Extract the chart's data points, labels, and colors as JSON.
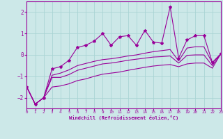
{
  "xlabel": "Windchill (Refroidissement éolien,°C)",
  "xlim": [
    0,
    23
  ],
  "ylim": [
    -2.5,
    2.5
  ],
  "yticks": [
    -2,
    -1,
    0,
    1,
    2
  ],
  "xticks": [
    0,
    1,
    2,
    3,
    4,
    5,
    6,
    7,
    8,
    9,
    10,
    11,
    12,
    13,
    14,
    15,
    16,
    17,
    18,
    19,
    20,
    21,
    22,
    23
  ],
  "bg_color": "#cce8e8",
  "grid_color": "#aad4d4",
  "line_color": "#990099",
  "line1_x": [
    0,
    1,
    2,
    3,
    4,
    5,
    6,
    7,
    8,
    9,
    10,
    11,
    12,
    13,
    14,
    15,
    16,
    17,
    18,
    19,
    20,
    21,
    22,
    23
  ],
  "line1_y": [
    -1.5,
    -2.3,
    -2.0,
    -0.65,
    -0.55,
    -0.25,
    0.35,
    0.45,
    0.65,
    1.0,
    0.45,
    0.85,
    0.9,
    0.45,
    1.15,
    0.6,
    0.55,
    2.25,
    -0.15,
    0.7,
    0.9,
    0.9,
    -0.35,
    0.05
  ],
  "line2_x": [
    0,
    1,
    2,
    3,
    4,
    5,
    6,
    7,
    8,
    9,
    10,
    11,
    12,
    13,
    14,
    15,
    16,
    17,
    18,
    19,
    20,
    21,
    22,
    23
  ],
  "line2_y": [
    -1.5,
    -2.3,
    -2.0,
    -0.95,
    -0.85,
    -0.7,
    -0.5,
    -0.4,
    -0.3,
    -0.22,
    -0.18,
    -0.12,
    -0.05,
    0.0,
    0.08,
    0.15,
    0.2,
    0.25,
    -0.28,
    0.32,
    0.38,
    0.38,
    -0.38,
    0.05
  ],
  "line3_x": [
    0,
    1,
    2,
    3,
    4,
    5,
    6,
    7,
    8,
    9,
    10,
    11,
    12,
    13,
    14,
    15,
    16,
    17,
    18,
    19,
    20,
    21,
    22,
    23
  ],
  "line3_y": [
    -1.5,
    -2.3,
    -2.0,
    -1.05,
    -1.05,
    -0.92,
    -0.72,
    -0.62,
    -0.52,
    -0.42,
    -0.38,
    -0.32,
    -0.25,
    -0.2,
    -0.15,
    -0.1,
    -0.08,
    -0.05,
    -0.38,
    -0.02,
    0.0,
    0.0,
    -0.5,
    0.05
  ],
  "line4_x": [
    0,
    1,
    2,
    3,
    4,
    5,
    6,
    7,
    8,
    9,
    10,
    11,
    12,
    13,
    14,
    15,
    16,
    17,
    18,
    19,
    20,
    21,
    22,
    23
  ],
  "line4_y": [
    -1.5,
    -2.3,
    -2.0,
    -1.5,
    -1.45,
    -1.35,
    -1.2,
    -1.12,
    -1.0,
    -0.9,
    -0.85,
    -0.8,
    -0.72,
    -0.65,
    -0.58,
    -0.52,
    -0.48,
    -0.45,
    -0.55,
    -0.42,
    -0.38,
    -0.38,
    -0.62,
    0.05
  ]
}
